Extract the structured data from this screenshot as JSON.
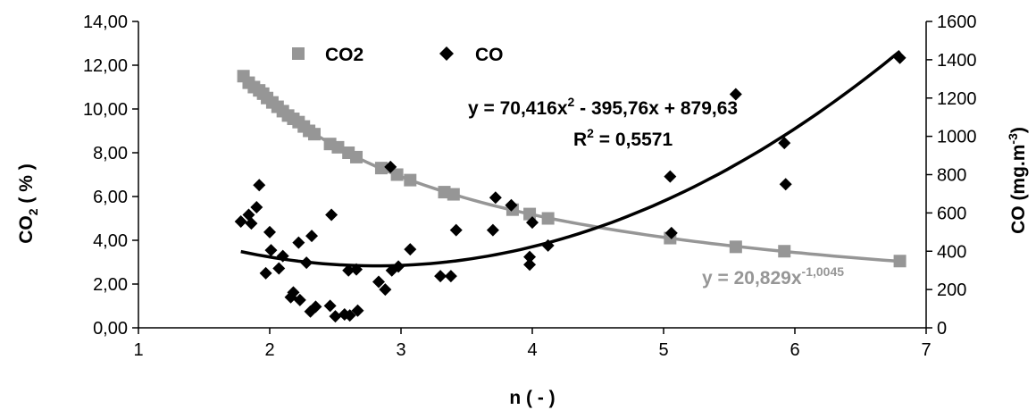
{
  "chart_data": {
    "type": "scatter",
    "xlabel": "n ( - )",
    "ylabel_left": {
      "main": "CO",
      "sub": "2",
      "rest": " ( % )"
    },
    "ylabel_right": {
      "main": "CO (mg.m",
      "sup": "-3",
      "rest": ")"
    },
    "xlim": [
      1,
      7
    ],
    "ylim_left": [
      0,
      14
    ],
    "ylim_right": [
      0,
      1600
    ],
    "x_ticks": [
      "1",
      "2",
      "3",
      "4",
      "5",
      "6",
      "7"
    ],
    "y_left_ticks": [
      "0,00",
      "2,00",
      "4,00",
      "6,00",
      "8,00",
      "10,00",
      "12,00",
      "14,00"
    ],
    "y_right_ticks": [
      "0",
      "200",
      "400",
      "600",
      "800",
      "1000",
      "1200",
      "1400",
      "1600"
    ],
    "grid": false,
    "legend_position": "top-left",
    "series": [
      {
        "name": "CO2",
        "axis": "left",
        "marker": "square",
        "color": "#969696",
        "points": [
          [
            1.8,
            11.5
          ],
          [
            1.84,
            11.2
          ],
          [
            1.88,
            11.0
          ],
          [
            1.92,
            10.85
          ],
          [
            1.95,
            10.7
          ],
          [
            1.98,
            10.5
          ],
          [
            2.02,
            10.3
          ],
          [
            2.06,
            10.1
          ],
          [
            2.1,
            9.9
          ],
          [
            2.14,
            9.7
          ],
          [
            2.18,
            9.55
          ],
          [
            2.22,
            9.4
          ],
          [
            2.26,
            9.2
          ],
          [
            2.3,
            9.0
          ],
          [
            2.34,
            8.85
          ],
          [
            2.46,
            8.4
          ],
          [
            2.52,
            8.25
          ],
          [
            2.6,
            8.0
          ],
          [
            2.66,
            7.8
          ],
          [
            2.85,
            7.3
          ],
          [
            2.97,
            7.0
          ],
          [
            3.07,
            6.75
          ],
          [
            3.33,
            6.2
          ],
          [
            3.4,
            6.1
          ],
          [
            3.85,
            5.4
          ],
          [
            3.98,
            5.2
          ],
          [
            4.12,
            5.0
          ],
          [
            5.05,
            4.1
          ],
          [
            5.55,
            3.7
          ],
          [
            5.92,
            3.5
          ],
          [
            6.8,
            3.05
          ]
        ]
      },
      {
        "name": "CO",
        "axis": "right",
        "marker": "diamond",
        "color": "#000000",
        "points": [
          [
            1.78,
            555
          ],
          [
            1.84,
            590
          ],
          [
            1.86,
            545
          ],
          [
            1.9,
            630
          ],
          [
            1.92,
            745
          ],
          [
            1.97,
            285
          ],
          [
            2.0,
            500
          ],
          [
            2.01,
            405
          ],
          [
            2.07,
            310
          ],
          [
            2.1,
            375
          ],
          [
            2.16,
            160
          ],
          [
            2.18,
            185
          ],
          [
            2.22,
            445
          ],
          [
            2.23,
            145
          ],
          [
            2.28,
            340
          ],
          [
            2.31,
            85
          ],
          [
            2.32,
            480
          ],
          [
            2.35,
            110
          ],
          [
            2.46,
            115
          ],
          [
            2.47,
            590
          ],
          [
            2.5,
            60
          ],
          [
            2.57,
            70
          ],
          [
            2.6,
            300
          ],
          [
            2.61,
            65
          ],
          [
            2.66,
            305
          ],
          [
            2.67,
            90
          ],
          [
            2.83,
            240
          ],
          [
            2.88,
            200
          ],
          [
            2.92,
            840
          ],
          [
            2.93,
            300
          ],
          [
            2.98,
            320
          ],
          [
            3.07,
            410
          ],
          [
            3.3,
            270
          ],
          [
            3.38,
            270
          ],
          [
            3.42,
            510
          ],
          [
            3.7,
            510
          ],
          [
            3.72,
            680
          ],
          [
            3.84,
            640
          ],
          [
            3.98,
            330
          ],
          [
            3.98,
            370
          ],
          [
            4.0,
            550
          ],
          [
            4.12,
            430
          ],
          [
            5.05,
            790
          ],
          [
            5.06,
            495
          ],
          [
            5.55,
            1220
          ],
          [
            5.92,
            965
          ],
          [
            5.93,
            750
          ],
          [
            6.8,
            1410
          ]
        ]
      }
    ],
    "trendlines": [
      {
        "series": "CO2",
        "type": "power",
        "a": 20.829,
        "b": -1.0045,
        "axis": "left",
        "color": "#969696"
      },
      {
        "series": "CO",
        "type": "poly2",
        "a": 70.416,
        "b": -395.76,
        "c": 879.63,
        "axis": "right",
        "color": "#000000"
      }
    ],
    "annotations": {
      "co_equation": {
        "prefix": "y = 70,416x",
        "sup": "2",
        "suffix": " - 395,76x + 879,63"
      },
      "co_r2": {
        "prefix": "R",
        "sup": "2",
        "suffix": " = 0,5571"
      },
      "co2_equation": {
        "prefix": "y = 20,829x",
        "sup": "-1,0045"
      }
    }
  }
}
